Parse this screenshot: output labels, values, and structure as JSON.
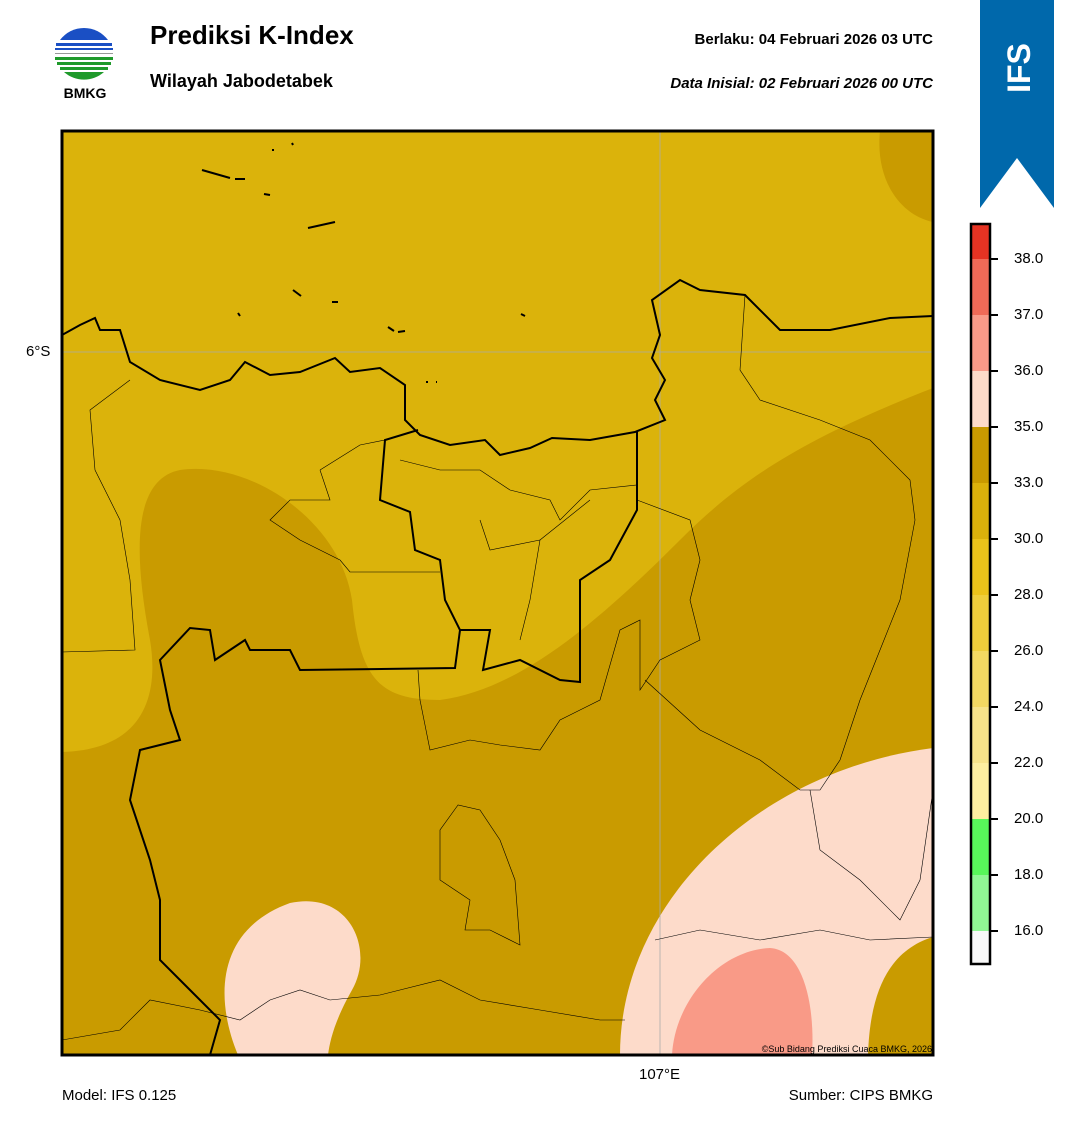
{
  "header": {
    "logo_text": "BMKG",
    "title": "Prediksi K-Index",
    "subtitle": "Wilayah Jabodetabek",
    "valid_label": "Berlaku:  04 Februari 2026 03 UTC",
    "init_label": "Data Inisial:  02 Februari 2026 00 UTC"
  },
  "banner": {
    "text": "IFS",
    "color": "#0068ab"
  },
  "map": {
    "lat_label": "6°S",
    "lon_label": "107°E",
    "copyright": "©Sub Bidang Prediksi Cuaca BMKG, 2026",
    "field_colors": {
      "30-33": "#dbb30b",
      "33-35": "#c99b00",
      "35-36": "#fddbca",
      "36-37": "#f99a87"
    }
  },
  "colorbar": {
    "ticks": [
      "38.0",
      "37.0",
      "36.0",
      "35.0",
      "33.0",
      "30.0",
      "28.0",
      "26.0",
      "24.0",
      "22.0",
      "20.0",
      "18.0",
      "16.0"
    ],
    "colors": [
      "#e53323",
      "#f06a57",
      "#f99a88",
      "#fddbc9",
      "#c99a00",
      "#dbb10b",
      "#ebc21a",
      "#eecd3b",
      "#f3d862",
      "#f7e38a",
      "#fdeea0",
      "#58f75a",
      "#90f794",
      "#f8f8f8"
    ]
  },
  "footer": {
    "model": "Model: IFS 0.125",
    "source": "Sumber: CIPS BMKG"
  }
}
